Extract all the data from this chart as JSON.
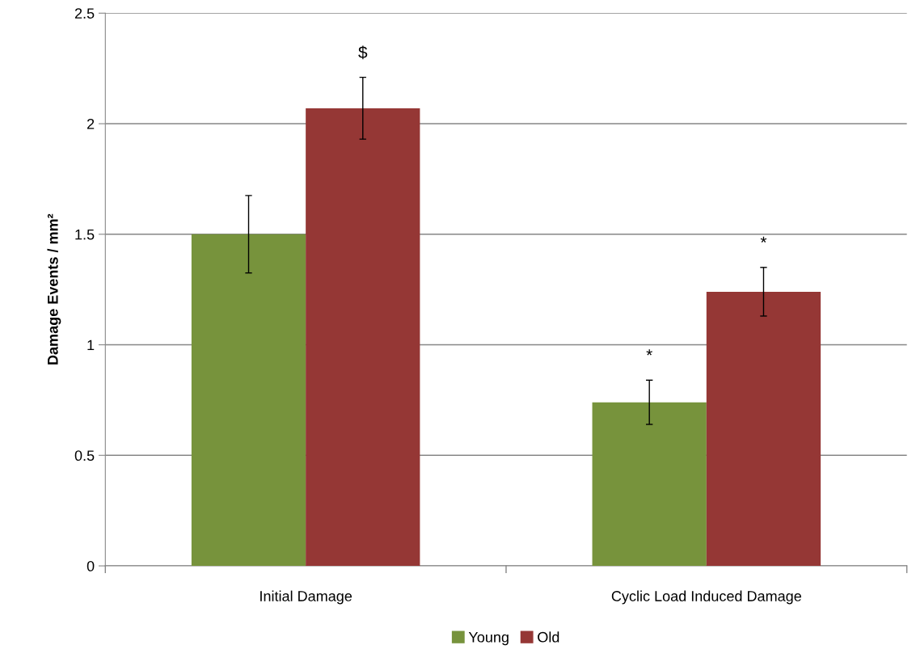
{
  "chart_data": {
    "type": "bar",
    "ylabel": "Damage Events / mm²",
    "categories": [
      "Initial Damage",
      "Cyclic Load Induced Damage"
    ],
    "series": [
      {
        "name": "Young",
        "color": "#77933c",
        "values": [
          1.5,
          0.74
        ],
        "errors": [
          0.175,
          0.1
        ]
      },
      {
        "name": "Old",
        "color": "#953735",
        "values": [
          2.07,
          1.24
        ],
        "errors": [
          0.14,
          0.11
        ]
      }
    ],
    "ylim": [
      0,
      2.5
    ],
    "yticks": [
      0,
      0.5,
      1,
      1.5,
      2,
      2.5
    ],
    "grid": "y",
    "legend": "bottom",
    "annotations": [
      "$",
      "*",
      "*"
    ]
  }
}
